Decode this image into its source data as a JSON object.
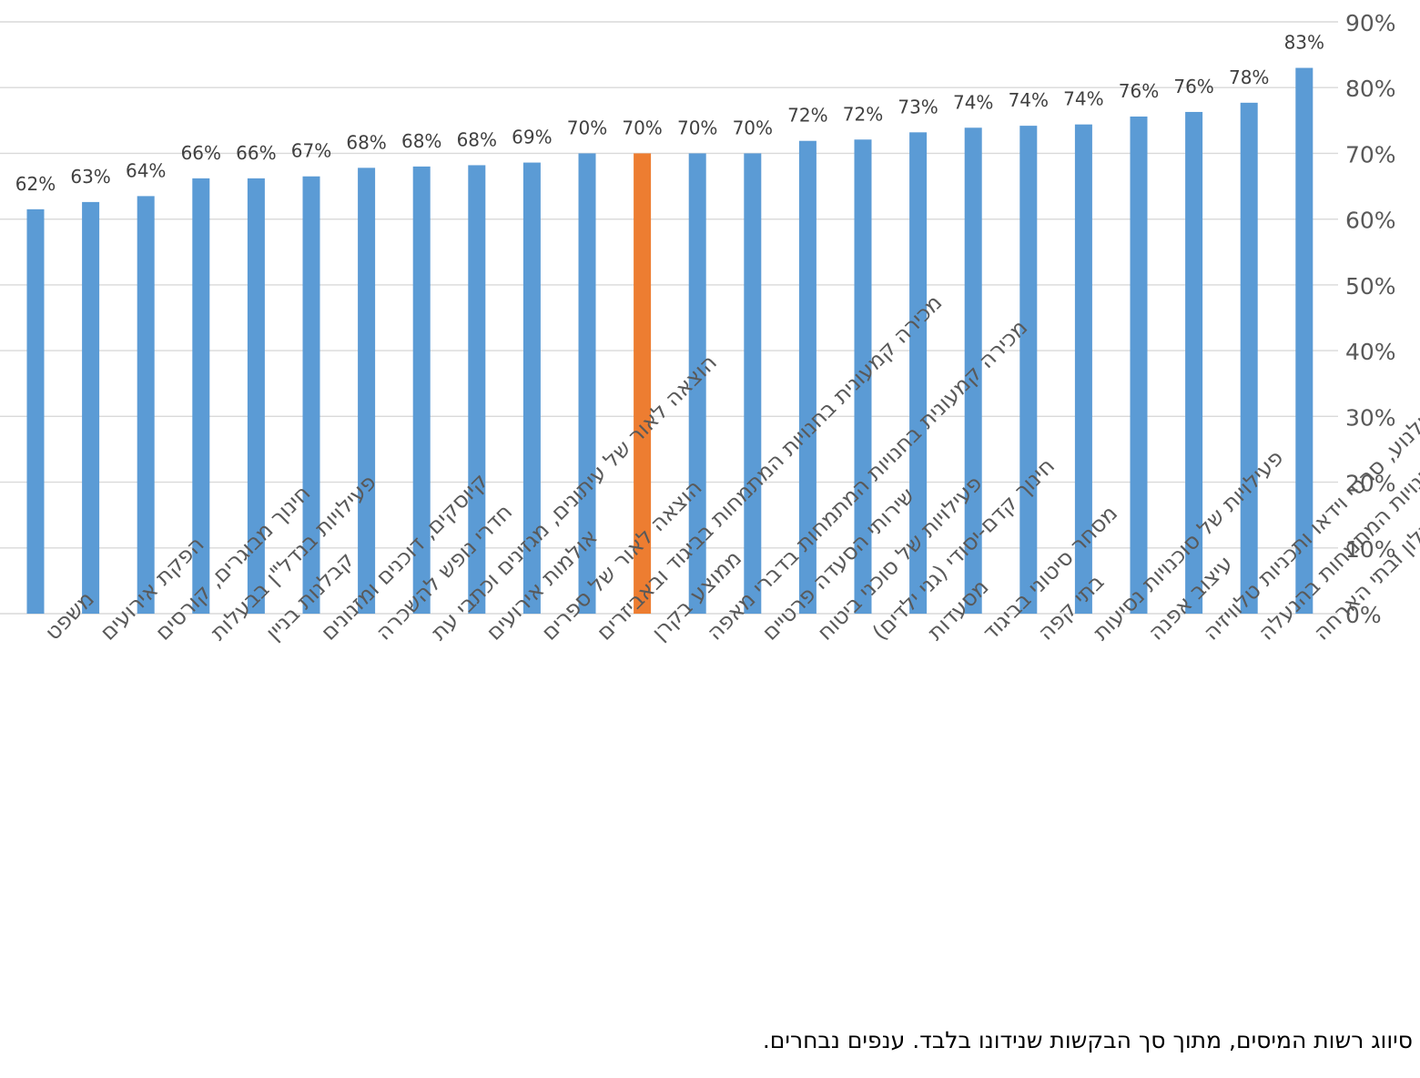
{
  "chart_data": {
    "type": "bar",
    "categories": [
      "משפט",
      "הפקת אירועים",
      "חינוך מבוגרים, קורסים",
      "פעילויות בנדל\"ן בבעלות",
      "קבלנות בניין",
      "קיוסקים, דוכנים ומזנונים",
      "חדרי נופש להשכרה",
      "הוצאה לאור של עיתונים, מגזינים וכתבי עת",
      "אולמות אירועים",
      "הוצאה לאור של ספרים",
      "מכירה קמעונית בחנויות המתמחות בביגוד ובאביזרים",
      "ממוצע בקרן",
      "מכירה קמעונית בחנויות המתמחות בדברי מאפה",
      "שירותי הסעדה פרטיים",
      "פעילויות של סוכני ביטוח",
      "חינוך קדם-יסודי (גני ילדים)",
      "מסעדות",
      "מסחר סיטוני בביגוד",
      "בתי קפה",
      "פעילויות של סוכנויות נסיעות",
      "עיצוב אפנה",
      "הפקת סרטי קולנוע, סרטי וידאו ותכניות טלוויזיה",
      "מכירה קמעונית בחנויות המתמחות בהנעלה",
      "בתי מלון ובתי הארחה"
    ],
    "values": [
      61.5,
      62.6,
      63.5,
      66.2,
      66.2,
      66.5,
      67.8,
      68.0,
      68.2,
      68.6,
      70.0,
      70.0,
      70.0,
      70.0,
      71.9,
      72.1,
      73.2,
      73.9,
      74.2,
      74.4,
      75.6,
      76.3,
      77.7,
      83.0
    ],
    "data_labels": [
      "62%",
      "63%",
      "64%",
      "66%",
      "66%",
      "67%",
      "68%",
      "68%",
      "68%",
      "69%",
      "70%",
      "70%",
      "70%",
      "70%",
      "72%",
      "72%",
      "73%",
      "74%",
      "74%",
      "74%",
      "76%",
      "76%",
      "78%",
      "83%"
    ],
    "highlight_index": 11,
    "colors": {
      "bar": "#5B9BD5",
      "highlight": "#ED7D31",
      "grid": "#D9D9D9",
      "label": "#404040",
      "tick": "#595959"
    },
    "yticks": [
      "0%",
      "10%",
      "20%",
      "30%",
      "40%",
      "50%",
      "60%",
      "70%",
      "80%",
      "90%"
    ],
    "ylim": [
      0,
      90
    ],
    "y_axis_side": "right",
    "grid": true,
    "legend": "none",
    "title": "",
    "xlabel": "",
    "ylabel": ""
  },
  "footer": {
    "note": "סיווג רשות המיסים, מתוך סך הבקשות שנידונו בלבד. ענפים נבחרים."
  }
}
